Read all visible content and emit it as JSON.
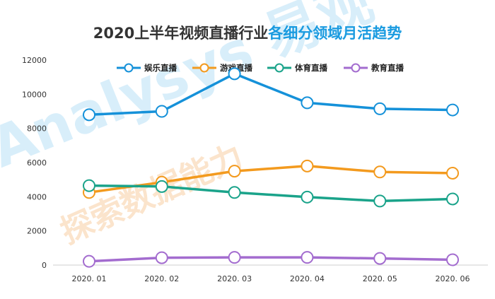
{
  "colors": {
    "title_main": "#333333",
    "title_accent": "#1a9be0",
    "axis": "#cfcfcf",
    "watermark_blue": "#d8eefa",
    "watermark_orange": "#fbe4cc"
  },
  "watermark": {
    "brand": "Analysys 易观",
    "slogan": "探索数据能力"
  },
  "chart_data": {
    "type": "line",
    "title": "2020上半年视频直播行业各细分领域月活趋势",
    "title_main": "2020上半年视频直播行业",
    "title_accent": "各细分领域月活趋势",
    "categories": [
      "2020. 01",
      "2020. 02",
      "2020. 03",
      "2020. 04",
      "2020. 05",
      "2020. 06"
    ],
    "ylim": [
      0,
      12000
    ],
    "yticks": [
      0,
      2000,
      4000,
      6000,
      8000,
      10000,
      12000
    ],
    "grid": false,
    "legend_position": "top",
    "xlabel": "",
    "ylabel": "",
    "series": [
      {
        "name": "娱乐直播",
        "color": "#1591d9",
        "values": [
          8800,
          9000,
          11200,
          9500,
          9150,
          9080
        ]
      },
      {
        "name": "游戏直播",
        "color": "#f39a1e",
        "values": [
          4250,
          4850,
          5500,
          5800,
          5450,
          5380
        ]
      },
      {
        "name": "体育直播",
        "color": "#1aa38a",
        "values": [
          4650,
          4600,
          4250,
          3980,
          3750,
          3870
        ]
      },
      {
        "name": "教育直播",
        "color": "#a36ccf",
        "values": [
          220,
          430,
          450,
          450,
          390,
          310
        ]
      }
    ]
  }
}
